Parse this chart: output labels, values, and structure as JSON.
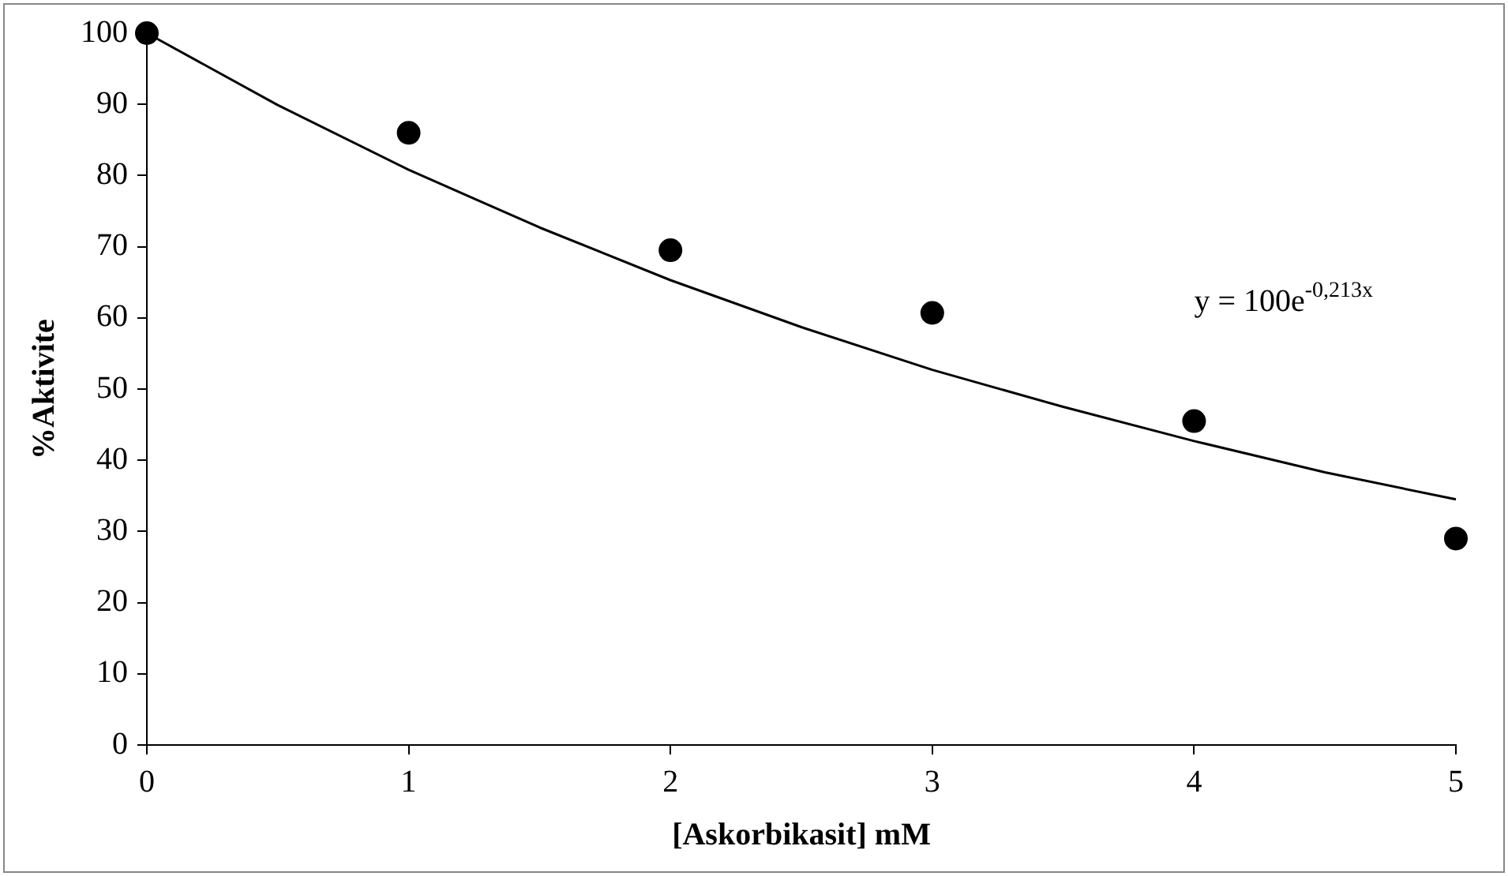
{
  "chart_data": {
    "type": "scatter",
    "xlabel": "[Askorbikasit] mM",
    "ylabel": "%Aktivite",
    "xlim": [
      0,
      5
    ],
    "xticks": [
      0,
      1,
      2,
      3,
      4,
      5
    ],
    "ylim": [
      0,
      100
    ],
    "yticks": [
      0,
      10,
      20,
      30,
      40,
      50,
      60,
      70,
      80,
      90,
      100
    ],
    "grid": false,
    "legend": false,
    "marker": "circle",
    "series": [
      {
        "type": "scatter",
        "color": "#000000",
        "x": [
          0,
          1,
          2,
          3,
          4,
          5
        ],
        "values": [
          100,
          86,
          69.5,
          60.7,
          45.5,
          29
        ]
      },
      {
        "type": "line",
        "color": "#000000",
        "marker": "none",
        "x": [
          0,
          0.5,
          1,
          1.5,
          2,
          2.5,
          3,
          3.5,
          4,
          4.5,
          5
        ],
        "values": [
          100,
          89.9,
          80.8,
          72.7,
          65.3,
          58.7,
          52.7,
          47.5,
          42.7,
          38.3,
          34.5
        ]
      }
    ],
    "annotations": [
      "y = 100e$^{-0,213x}$"
    ]
  }
}
